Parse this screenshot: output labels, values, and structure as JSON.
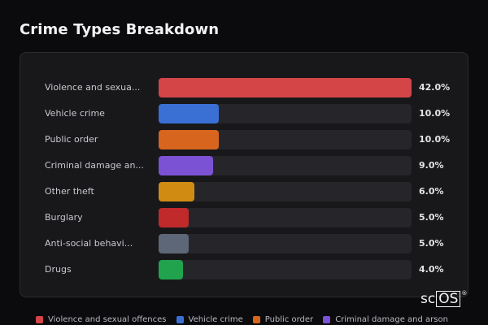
{
  "title": "Crime Types Breakdown",
  "chart_data": {
    "type": "bar",
    "orientation": "horizontal",
    "title": "Crime Types Breakdown",
    "categories": [
      "Violence and sexua...",
      "Vehicle crime",
      "Public order",
      "Criminal damage an...",
      "Other theft",
      "Burglary",
      "Anti-social behavi...",
      "Drugs"
    ],
    "values": [
      42.0,
      10.0,
      10.0,
      9.0,
      6.0,
      5.0,
      5.0,
      4.0
    ],
    "value_labels": [
      "42.0%",
      "10.0%",
      "10.0%",
      "9.0%",
      "6.0%",
      "5.0%",
      "5.0%",
      "4.0%"
    ],
    "xlim": [
      0,
      42
    ],
    "colors": [
      "#d44548",
      "#3a6fd4",
      "#d8651e",
      "#7b52d3",
      "#d08c12",
      "#c02a2a",
      "#5d6778",
      "#21a34d"
    ],
    "grid": false,
    "legend_position": "bottom",
    "legend": [
      {
        "label": "Violence and sexual offences",
        "color": "#d44548"
      },
      {
        "label": "Vehicle crime",
        "color": "#3a6fd4"
      },
      {
        "label": "Public order",
        "color": "#d8651e"
      },
      {
        "label": "Criminal damage and arson",
        "color": "#7b52d3"
      }
    ]
  },
  "logo": {
    "text": "sc",
    "boxed": "OS",
    "mark": "®"
  }
}
